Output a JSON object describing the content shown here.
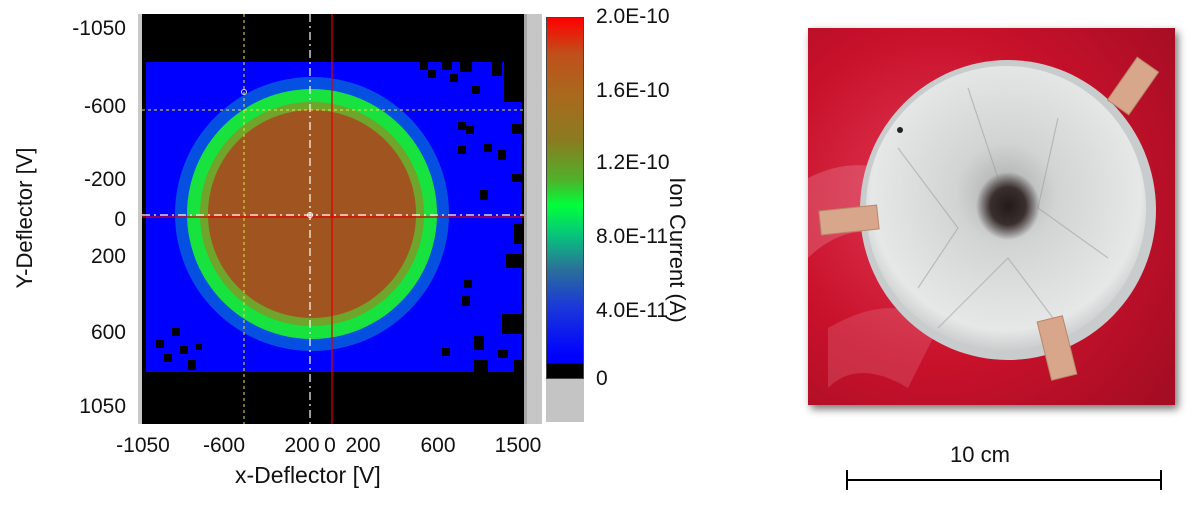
{
  "left_figure": {
    "y_axis": {
      "title": "Y-Deflector [V]",
      "ticks": [
        "-1050",
        "-600",
        "-200",
        "0",
        "200",
        "600",
        "1050"
      ]
    },
    "x_axis": {
      "title": "x-Deflector [V]",
      "ticks": [
        "-1050",
        "-600",
        "200",
        "0",
        "200",
        "600",
        "1500"
      ]
    },
    "colorbar": {
      "title": "Ion Current (A)",
      "ticks": [
        "2.0E-10",
        "1.6E-10",
        "1.2E-10",
        "8.0E-11",
        "4.0E-11",
        "0"
      ],
      "colors": [
        "#ff0000",
        "#a86a1e",
        "#00ff3a",
        "#0000ff",
        "#000000"
      ]
    },
    "heatmap": {
      "beam_color": "#a0541f",
      "ring_color": "#16e83f",
      "background_color": "#0000ff",
      "no_signal_color": "#000000"
    },
    "cursors": {
      "red_color": "#e00000",
      "white_color": "#ffffff",
      "yellow_color": "#e6e64a"
    }
  },
  "right_figure": {
    "scalebar_label": "10 cm",
    "photo_colors": {
      "background": "#c8112b",
      "foil": "#d9dcdc",
      "spot": "#2a2020",
      "tape": "#d9a585"
    }
  }
}
